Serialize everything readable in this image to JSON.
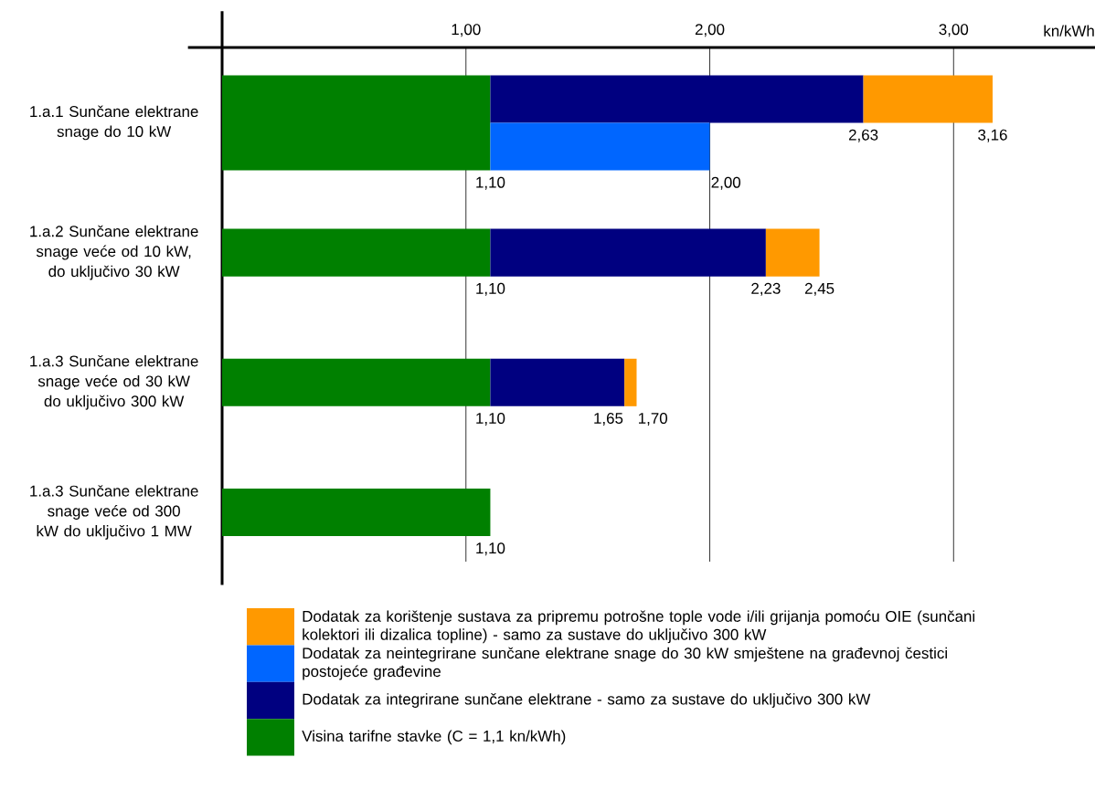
{
  "chart_data": {
    "type": "bar",
    "orientation": "horizontal",
    "xlabel": "kn/kWh",
    "categories": [
      "1.a.1 Sunčane elektrane snage do 10 kW",
      "1.a.2 Sunčane elektrane snage veće od 10 kW, do uključivo 30 kW",
      "1.a.3 Sunčane elektrane snage veće od 30 kW do uključivo 300 kW",
      "1.a.3 Sunčane elektrane snage veće od 300 kW do uključivo 1 MW"
    ],
    "xlim": [
      0,
      3.58
    ],
    "xticks": [
      {
        "value": 1,
        "label": "1,00"
      },
      {
        "value": 2,
        "label": "2,00"
      },
      {
        "value": 3,
        "label": "3,00"
      }
    ],
    "grid": "x",
    "legend": "bottom",
    "series": [
      {
        "name": "Visina tarifne stavke (C = 1,1 kn/kWh)",
        "color": "#008000",
        "base": [
          0,
          0,
          0,
          0
        ],
        "values": [
          1.1,
          1.1,
          1.1,
          1.1
        ],
        "value_labels": [
          "1,10",
          "1,10",
          "1,10",
          "1,10"
        ]
      },
      {
        "name": "Dodatak za integrirane sunčane elektrane - samo za sustave do uključivo 300 kW",
        "color": "#000080",
        "base": [
          1.1,
          1.1,
          1.1,
          null
        ],
        "values": [
          1.53,
          1.13,
          0.55,
          null
        ],
        "value_labels": [
          "2,63",
          "2,23",
          "1,65",
          null
        ]
      },
      {
        "name": "Dodatak za neintegrirane sunčane elektrane snage do 30 kW smještene na građevnoj čestici postojeće građevine",
        "color": "#0066ff",
        "base": [
          1.1,
          null,
          null,
          null
        ],
        "values": [
          0.9,
          null,
          null,
          null
        ],
        "value_labels": [
          "2,00",
          null,
          null,
          null
        ]
      },
      {
        "name": "Dodatak za korištenje sustava za pripremu potrošne tople vode i/ili grijanja pomoću OIE (sunčani kolektori ili dizalica topline) - samo za sustave do uključivo 300 kW",
        "color": "#ff9900",
        "base": [
          2.63,
          2.23,
          1.65,
          null
        ],
        "values": [
          0.53,
          0.22,
          0.05,
          null
        ],
        "value_labels": [
          "3,16",
          "2,45",
          "1,70",
          null
        ]
      }
    ]
  }
}
